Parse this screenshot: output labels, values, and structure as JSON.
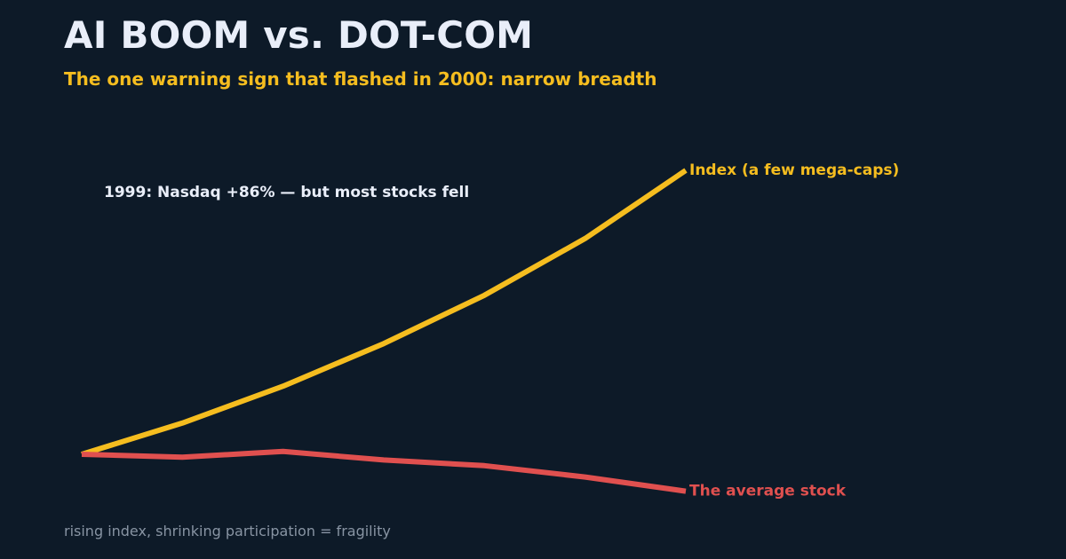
{
  "header": {
    "title": "AI BOOM vs. DOT-COM",
    "subtitle": "The one warning sign that flashed in 2000: narrow breadth"
  },
  "footer": {
    "note": "rising index, shrinking participation = fragility"
  },
  "colors": {
    "background": "#0d1a28",
    "title": "#e9eef9",
    "accent_gold": "#f5bd1f",
    "accent_red": "#e0504f",
    "muted": "#8894a3"
  },
  "chart_data": {
    "type": "line",
    "title": "AI BOOM vs. DOT-COM",
    "subtitle": "The one warning sign that flashed in 2000: narrow breadth",
    "xlabel": "",
    "ylabel": "",
    "grid": false,
    "x": [
      0,
      1,
      2,
      3,
      4,
      5,
      6
    ],
    "xlim": [
      0,
      6
    ],
    "ylim": [
      -10,
      100
    ],
    "series": [
      {
        "name": "Index (a few mega-caps)",
        "color": "#f5bd1f",
        "values": [
          0,
          11,
          24,
          39,
          56,
          76,
          100
        ]
      },
      {
        "name": "The average stock",
        "color": "#e0504f",
        "values": [
          0,
          -1,
          1,
          -2,
          -4,
          -8,
          -13
        ]
      }
    ],
    "annotations": [
      {
        "text": "1999: Nasdaq +86% — but most stocks fell"
      }
    ]
  }
}
